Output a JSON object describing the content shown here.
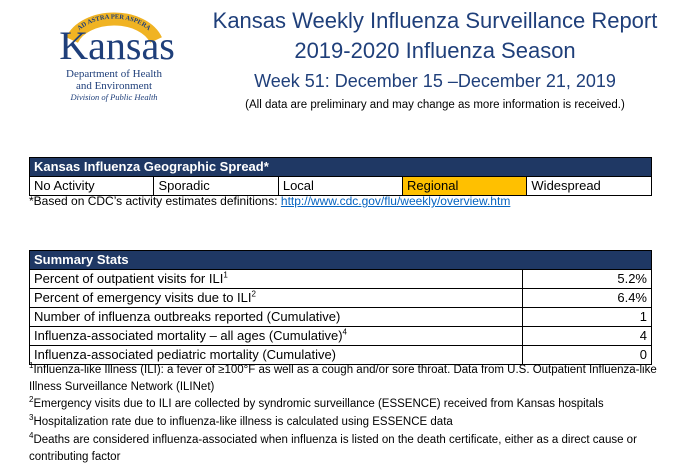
{
  "logo": {
    "arc_text": "AD ASTRA PER ASPERA",
    "wordmark": "Kansas",
    "line1": "Department of Health",
    "line2": "and Environment",
    "line3": "Division of Public Health",
    "colors": {
      "navy": "#1f3f7a",
      "gold": "#f0b323"
    }
  },
  "header": {
    "title1": "Kansas Weekly Influenza Surveillance Report",
    "title2": "2019-2020 Influenza Season",
    "week": "Week 51: December 15 –December 21, 2019",
    "disclaimer": "(All data are preliminary and may change as more information is received.)"
  },
  "geo": {
    "title": "Kansas Influenza Geographic Spread*",
    "levels": [
      "No Activity",
      "Sporadic",
      "Local",
      "Regional",
      "Widespread"
    ],
    "active_level": "Regional",
    "note_prefix": "*Based on CDC’s activity estimates definitions: ",
    "note_link": "http://www.cdc.gov/flu/weekly/overview.htm",
    "colors": {
      "header_bg": "#1f3864",
      "active_bg": "#ffc000"
    }
  },
  "summary": {
    "title": "Summary Stats",
    "rows": [
      {
        "label": "Percent of outpatient visits for ILI",
        "sup": "1",
        "value": "5.2%"
      },
      {
        "label": "Percent of emergency visits due to ILI",
        "sup": "2",
        "value": "6.4%"
      },
      {
        "label": "Number of influenza outbreaks reported (Cumulative)",
        "sup": "",
        "value": "1"
      },
      {
        "label": "Influenza-associated mortality – all ages (Cumulative)",
        "sup": "4",
        "value": "4"
      },
      {
        "label": "Influenza-associated pediatric mortality (Cumulative)",
        "sup": "",
        "value": "0"
      }
    ]
  },
  "footnotes": {
    "f1": {
      "sup": "1",
      "text": "Influenza-like Illness (ILI): a fever of ≥100°F as well as a cough and/or sore throat. Data from U.S. Outpatient Influenza-like Illness Surveillance Network (ILINet)"
    },
    "f2": {
      "sup": "2",
      "text": "Emergency visits due to ILI are collected by syndromic surveillance (ESSENCE) received from Kansas hospitals"
    },
    "f3": {
      "sup": "3",
      "text": "Hospitalization rate due to influenza-like illness is calculated using ESSENCE data"
    },
    "f4": {
      "sup": "4",
      "text": "Deaths are considered influenza-associated when influenza is listed on the death certificate, either as a direct cause or contributing factor"
    }
  }
}
